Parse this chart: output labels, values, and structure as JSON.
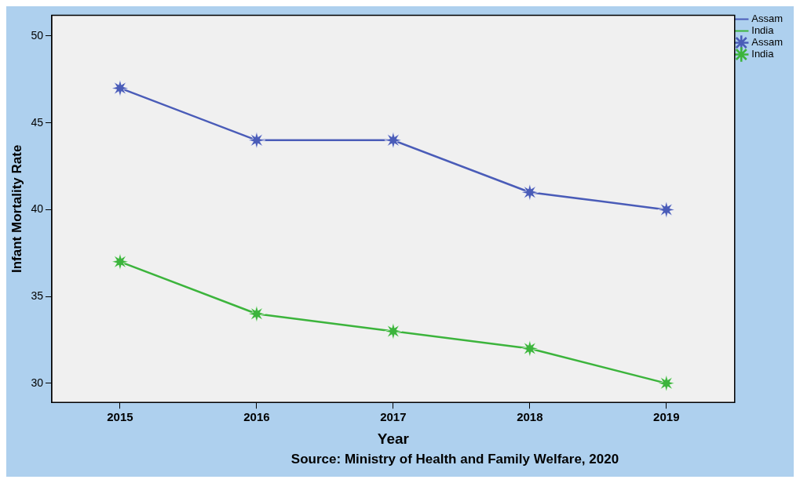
{
  "chart_data": {
    "type": "line",
    "xlabel": "Year",
    "ylabel": "Infant Mortality Rate",
    "categories": [
      "2015",
      "2016",
      "2017",
      "2018",
      "2019"
    ],
    "series": [
      {
        "name": "Assam",
        "color": "#4a5cb8",
        "values": [
          47,
          44,
          44,
          41,
          40
        ]
      },
      {
        "name": "India",
        "color": "#3cb43c",
        "values": [
          37,
          34,
          33,
          32,
          30
        ]
      }
    ],
    "ylim": [
      28.9,
      51.2
    ],
    "yticks": [
      30,
      35,
      40,
      45,
      50
    ],
    "marker": "star",
    "legend": "top right",
    "annotations": [
      "Source: Ministry of Health and Family Welfare, 2020"
    ]
  }
}
